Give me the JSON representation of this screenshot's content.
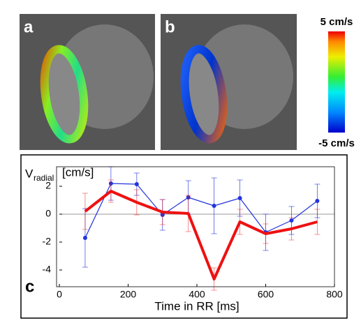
{
  "images": [
    {
      "label": "a"
    },
    {
      "label": "b"
    }
  ],
  "colorbar": {
    "max_label": "5 cm/s",
    "min_label": "-5 cm/s"
  },
  "chart_data": {
    "type": "line",
    "panel_label": "c",
    "y_label": "V",
    "y_label_subscript": "radial",
    "y_label_unit": "[cm/s]",
    "x_label": "Time in RR [ms]",
    "x": [
      75,
      150,
      225,
      300,
      375,
      450,
      525,
      600,
      675,
      750
    ],
    "series": [
      {
        "color": "#2233dd",
        "values": [
          -1.7,
          2.2,
          2.15,
          -0.05,
          1.2,
          0.6,
          1.15,
          -1.3,
          -0.45,
          0.95
        ],
        "errors": [
          2.1,
          1.2,
          0.8,
          1.1,
          1.2,
          2.0,
          1.3,
          1.3,
          1.0,
          1.2
        ]
      },
      {
        "color": "#ee1111",
        "values": [
          0.2,
          1.65,
          0.85,
          0.15,
          0.05,
          -4.65,
          -0.55,
          -1.4,
          -1.05,
          -0.55
        ],
        "errors": [
          1.3,
          0.8,
          0.9,
          0.9,
          1.3,
          0.8,
          0.9,
          0.7,
          0.8,
          0.9
        ]
      }
    ],
    "reference_line": 0,
    "xlim": [
      0,
      800
    ],
    "xticks": [
      0,
      200,
      400,
      600,
      800
    ],
    "ylim": [
      -5.2,
      3.4
    ],
    "yticks": [
      -4,
      -2,
      0,
      2
    ]
  }
}
